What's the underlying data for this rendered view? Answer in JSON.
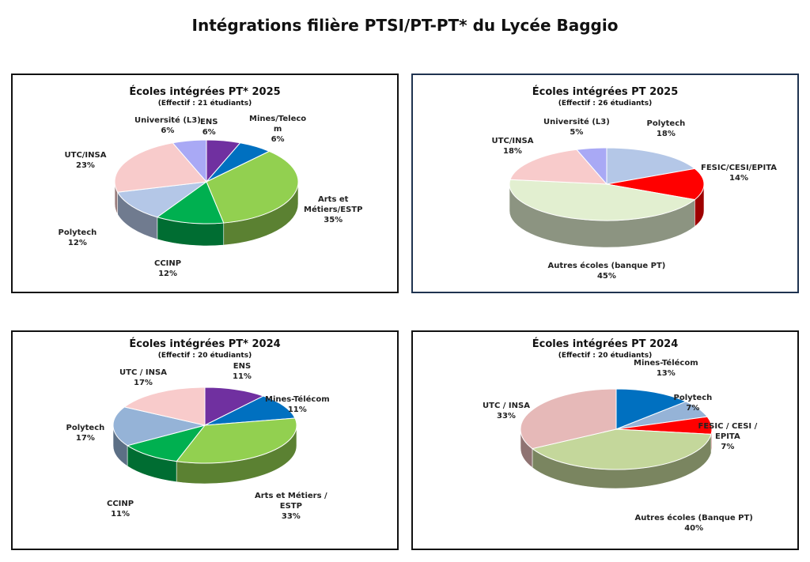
{
  "page": {
    "title": "Intégrations filière PTSI/PT-PT* du Lycée Baggio"
  },
  "chart_data": [
    {
      "type": "pie",
      "title": "Écoles intégrées PT* 2025",
      "subtitle": "(Effectif : 21 étudiants)",
      "slices": [
        {
          "name": "ENS",
          "value": 6,
          "value_label": "6%",
          "color": "#7030a0"
        },
        {
          "name": "Mines/Teleco\nm",
          "value": 6,
          "value_label": "6%",
          "color": "#0070c0"
        },
        {
          "name": "Arts et\nMétiers/ESTP",
          "value": 35,
          "value_label": "35%",
          "color": "#92d050"
        },
        {
          "name": "CCINP",
          "value": 12,
          "value_label": "12%",
          "color": "#00b050"
        },
        {
          "name": "Polytech",
          "value": 12,
          "value_label": "12%",
          "color": "#b4c7e7"
        },
        {
          "name": "UTC/INSA",
          "value": 23,
          "value_label": "23%",
          "color": "#f8cbcb"
        },
        {
          "name": "Université (L3)",
          "value": 6,
          "value_label": "6%",
          "color": "#a9a9f5"
        }
      ]
    },
    {
      "type": "pie",
      "title": "Écoles intégrées PT 2025",
      "subtitle": "(Effectif : 26 étudiants)",
      "slices": [
        {
          "name": "Polytech",
          "value": 18,
          "value_label": "18%",
          "color": "#b4c7e7"
        },
        {
          "name": "FESIC/CESI/EPITA",
          "value": 14,
          "value_label": "14%",
          "color": "#ff0000"
        },
        {
          "name": "Autres écoles (banque PT)",
          "value": 45,
          "value_label": "45%",
          "color": "#e2efd0"
        },
        {
          "name": "UTC/INSA",
          "value": 18,
          "value_label": "18%",
          "color": "#f8cbcb"
        },
        {
          "name": "Université (L3)",
          "value": 5,
          "value_label": "5%",
          "color": "#a9a9f5"
        }
      ]
    },
    {
      "type": "pie",
      "title": "Écoles intégrées PT* 2024",
      "subtitle": "(Effectif : 20 étudiants)",
      "slices": [
        {
          "name": "ENS",
          "value": 11,
          "value_label": "11%",
          "color": "#7030a0"
        },
        {
          "name": "Mines-Télécom",
          "value": 11,
          "value_label": "11%",
          "color": "#0070c0"
        },
        {
          "name": "Arts et Métiers /\nESTP",
          "value": 33,
          "value_label": "33%",
          "color": "#92d050"
        },
        {
          "name": "CCINP",
          "value": 11,
          "value_label": "11%",
          "color": "#00b050"
        },
        {
          "name": "Polytech",
          "value": 17,
          "value_label": "17%",
          "color": "#95b3d7"
        },
        {
          "name": "UTC / INSA",
          "value": 17,
          "value_label": "17%",
          "color": "#f8cbcb"
        }
      ]
    },
    {
      "type": "pie",
      "title": "Écoles intégrées PT 2024",
      "subtitle": "(Effectif : 20 étudiants)",
      "slices": [
        {
          "name": "Mines-Télécom",
          "value": 13,
          "value_label": "13%",
          "color": "#0070c0"
        },
        {
          "name": "Polytech",
          "value": 7,
          "value_label": "7%",
          "color": "#95b3d7"
        },
        {
          "name": "FESIC / CESI /\nEPITA",
          "value": 7,
          "value_label": "7%",
          "color": "#ff0000"
        },
        {
          "name": "Autres écoles (Banque PT)",
          "value": 40,
          "value_label": "40%",
          "color": "#c4d79b"
        },
        {
          "name": "UTC / INSA",
          "value": 33,
          "value_label": "33%",
          "color": "#e6b9b8"
        }
      ]
    }
  ]
}
